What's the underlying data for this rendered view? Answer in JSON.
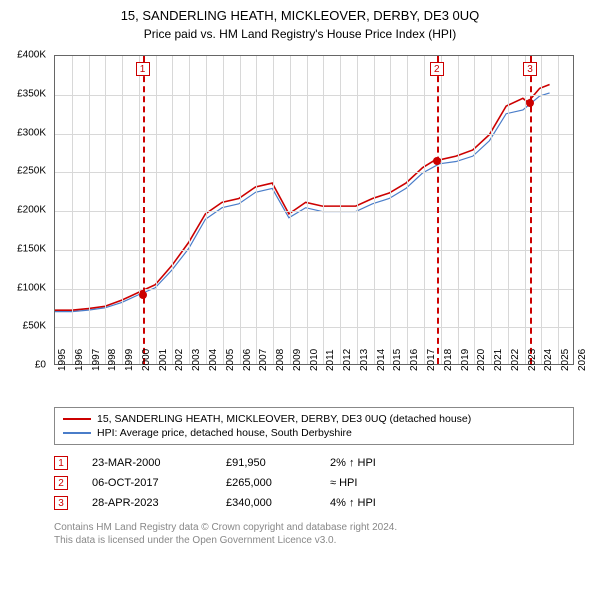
{
  "title": "15, SANDERLING HEATH, MICKLEOVER, DERBY, DE3 0UQ",
  "subtitle": "Price paid vs. HM Land Registry's House Price Index (HPI)",
  "chart": {
    "type": "line",
    "background_color": "#ffffff",
    "grid_color": "#d8d8d8",
    "border_color": "#666666",
    "x_years": [
      1995,
      1996,
      1997,
      1998,
      1999,
      2000,
      2001,
      2002,
      2003,
      2004,
      2005,
      2006,
      2007,
      2008,
      2009,
      2010,
      2011,
      2012,
      2013,
      2014,
      2015,
      2016,
      2017,
      2018,
      2019,
      2020,
      2021,
      2022,
      2023,
      2024,
      2025,
      2026
    ],
    "ylim": [
      0,
      400000
    ],
    "y_ticks": [
      0,
      50000,
      100000,
      150000,
      200000,
      250000,
      300000,
      350000,
      400000
    ],
    "y_tick_labels": [
      "£0",
      "£50K",
      "£100K",
      "£150K",
      "£200K",
      "£250K",
      "£300K",
      "£350K",
      "£400K"
    ],
    "series": [
      {
        "name": "property",
        "label": "15, SANDERLING HEATH, MICKLEOVER, DERBY, DE3 0UQ (detached house)",
        "color": "#cc0000",
        "width": 1.6,
        "data": [
          [
            1995,
            70000
          ],
          [
            1996,
            70000
          ],
          [
            1997,
            72000
          ],
          [
            1998,
            75000
          ],
          [
            1999,
            83000
          ],
          [
            2000,
            93000
          ],
          [
            2001,
            103000
          ],
          [
            2002,
            128000
          ],
          [
            2003,
            158000
          ],
          [
            2004,
            195000
          ],
          [
            2005,
            210000
          ],
          [
            2006,
            215000
          ],
          [
            2007,
            230000
          ],
          [
            2008,
            235000
          ],
          [
            2009,
            195000
          ],
          [
            2010,
            210000
          ],
          [
            2011,
            205000
          ],
          [
            2012,
            205000
          ],
          [
            2013,
            205000
          ],
          [
            2014,
            215000
          ],
          [
            2015,
            222000
          ],
          [
            2016,
            235000
          ],
          [
            2017,
            255000
          ],
          [
            2017.75,
            265000
          ],
          [
            2018,
            265000
          ],
          [
            2019,
            270000
          ],
          [
            2020,
            278000
          ],
          [
            2021,
            298000
          ],
          [
            2022,
            335000
          ],
          [
            2023,
            345000
          ],
          [
            2023.3,
            340000
          ],
          [
            2024,
            358000
          ],
          [
            2024.6,
            363000
          ]
        ]
      },
      {
        "name": "hpi",
        "label": "HPI: Average price, detached house, South Derbyshire",
        "color": "#4a7dc9",
        "width": 1.2,
        "data": [
          [
            1995,
            68000
          ],
          [
            1996,
            68000
          ],
          [
            1997,
            70000
          ],
          [
            1998,
            73000
          ],
          [
            1999,
            80000
          ],
          [
            2000,
            90000
          ],
          [
            2001,
            99000
          ],
          [
            2002,
            122000
          ],
          [
            2003,
            150000
          ],
          [
            2004,
            188000
          ],
          [
            2005,
            203000
          ],
          [
            2006,
            208000
          ],
          [
            2007,
            223000
          ],
          [
            2008,
            228000
          ],
          [
            2009,
            190000
          ],
          [
            2010,
            203000
          ],
          [
            2011,
            198000
          ],
          [
            2012,
            198000
          ],
          [
            2013,
            198000
          ],
          [
            2014,
            208000
          ],
          [
            2015,
            215000
          ],
          [
            2016,
            228000
          ],
          [
            2017,
            248000
          ],
          [
            2018,
            260000
          ],
          [
            2019,
            263000
          ],
          [
            2020,
            270000
          ],
          [
            2021,
            290000
          ],
          [
            2022,
            325000
          ],
          [
            2023,
            330000
          ],
          [
            2024,
            348000
          ],
          [
            2024.6,
            352000
          ]
        ]
      }
    ],
    "markers": [
      {
        "num": "1",
        "year": 2000.22,
        "price": 91950
      },
      {
        "num": "2",
        "year": 2017.76,
        "price": 265000
      },
      {
        "num": "3",
        "year": 2023.32,
        "price": 340000
      }
    ],
    "marker_line_color": "#cc0000",
    "marker_dot_color": "#cc0000"
  },
  "legend": {
    "items": [
      {
        "label": "15, SANDERLING HEATH, MICKLEOVER, DERBY, DE3 0UQ (detached house)",
        "color": "#cc0000"
      },
      {
        "label": "HPI: Average price, detached house, South Derbyshire",
        "color": "#4a7dc9"
      }
    ]
  },
  "sales": [
    {
      "num": "1",
      "date": "23-MAR-2000",
      "price": "£91,950",
      "diff": "2% ↑ HPI"
    },
    {
      "num": "2",
      "date": "06-OCT-2017",
      "price": "£265,000",
      "diff": "≈ HPI"
    },
    {
      "num": "3",
      "date": "28-APR-2023",
      "price": "£340,000",
      "diff": "4% ↑ HPI"
    }
  ],
  "footnote_line1": "Contains HM Land Registry data © Crown copyright and database right 2024.",
  "footnote_line2": "This data is licensed under the Open Government Licence v3.0.",
  "colors": {
    "text": "#000000",
    "footnote": "#888888",
    "marker_border": "#cc0000"
  }
}
